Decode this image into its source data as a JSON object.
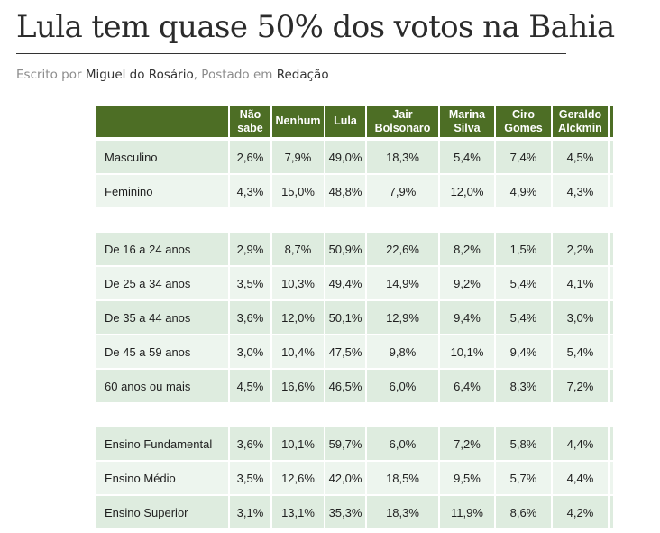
{
  "article": {
    "title": "Lula tem quase 50% dos votos na Bahia",
    "byline": {
      "written_prefix": "Escrito por",
      "author": "Miguel do Rosário",
      "posted_prefix": ", Postado em",
      "category": "Redação"
    }
  },
  "table": {
    "headers": [
      "",
      "Não sabe",
      "Nenhum",
      "Lula",
      "Jair Bolsonaro",
      "Marina Silva",
      "Ciro Gomes",
      "Geraldo Alckmin"
    ],
    "groups": [
      {
        "rows": [
          {
            "label": "Masculino",
            "values": [
              "2,6%",
              "7,9%",
              "49,0%",
              "18,3%",
              "5,4%",
              "7,4%",
              "4,5%"
            ]
          },
          {
            "label": "Feminino",
            "values": [
              "4,3%",
              "15,0%",
              "48,8%",
              "7,9%",
              "12,0%",
              "4,9%",
              "4,3%"
            ]
          }
        ]
      },
      {
        "rows": [
          {
            "label": "De 16 a 24 anos",
            "values": [
              "2,9%",
              "8,7%",
              "50,9%",
              "22,6%",
              "8,2%",
              "1,5%",
              "2,2%"
            ]
          },
          {
            "label": "De 25 a 34 anos",
            "values": [
              "3,5%",
              "10,3%",
              "49,4%",
              "14,9%",
              "9,2%",
              "5,4%",
              "4,1%"
            ]
          },
          {
            "label": "De 35 a 44 anos",
            "values": [
              "3,6%",
              "12,0%",
              "50,1%",
              "12,9%",
              "9,4%",
              "5,4%",
              "3,0%"
            ]
          },
          {
            "label": "De 45 a 59 anos",
            "values": [
              "3,0%",
              "10,4%",
              "47,5%",
              "9,8%",
              "10,1%",
              "9,4%",
              "5,4%"
            ]
          },
          {
            "label": "60 anos ou mais",
            "values": [
              "4,5%",
              "16,6%",
              "46,5%",
              "6,0%",
              "6,4%",
              "8,3%",
              "7,2%"
            ]
          }
        ]
      },
      {
        "rows": [
          {
            "label": "Ensino Fundamental",
            "values": [
              "3,6%",
              "10,1%",
              "59,7%",
              "6,0%",
              "7,2%",
              "5,8%",
              "4,4%"
            ]
          },
          {
            "label": "Ensino Médio",
            "values": [
              "3,5%",
              "12,6%",
              "42,0%",
              "18,5%",
              "9,5%",
              "5,7%",
              "4,4%"
            ]
          },
          {
            "label": "Ensino Superior",
            "values": [
              "3,1%",
              "13,1%",
              "35,3%",
              "18,3%",
              "11,9%",
              "8,6%",
              "4,2%"
            ]
          }
        ]
      }
    ]
  },
  "colors": {
    "header_bg": "#4d6e25",
    "row_dark": "#deecdf",
    "row_light": "#edf5ee",
    "link": "#333333",
    "muted": "#8c8c8c"
  }
}
